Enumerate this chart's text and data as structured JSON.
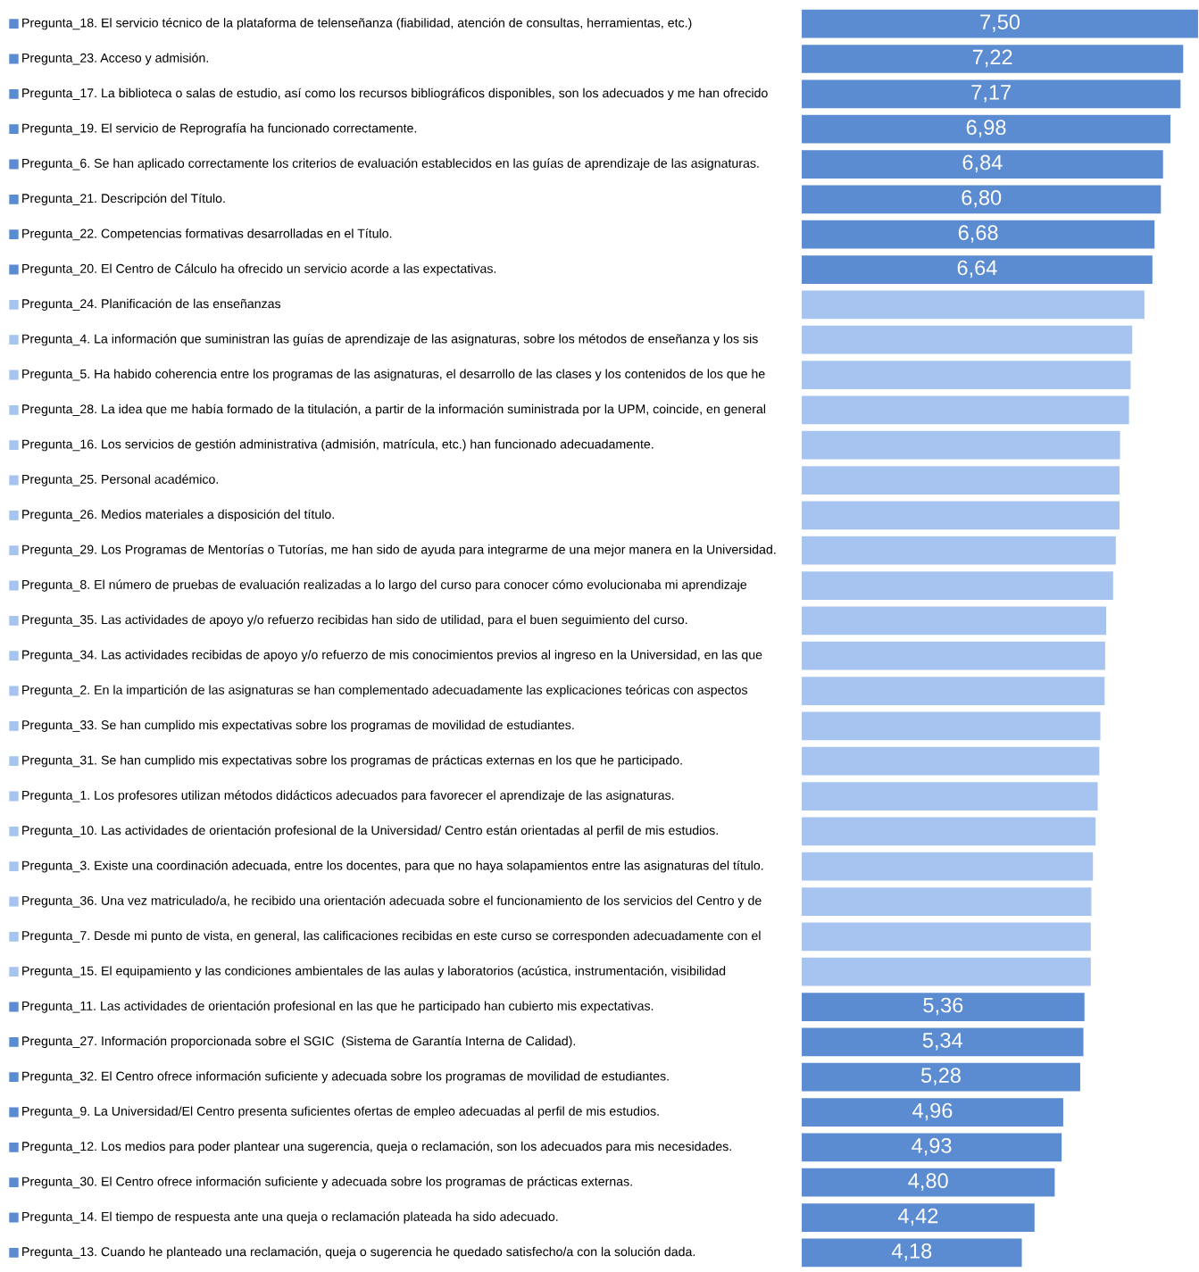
{
  "chart_data": {
    "type": "bar",
    "orientation": "horizontal",
    "categories": [
      "Pregunta_18. El servicio técnico de la plataforma de telenseñanza (fiabilidad, atención de consultas, herramientas, etc.)",
      "Pregunta_23. Acceso y admisión.",
      "Pregunta_17. La biblioteca o salas de estudio, así como los recursos bibliográficos disponibles, son los adecuados y me han ofrecido",
      "Pregunta_19. El servicio de Reprografía ha funcionado correctamente.",
      "Pregunta_6. Se han aplicado correctamente los criterios de evaluación establecidos en las guías de aprendizaje de las asignaturas.",
      "Pregunta_21. Descripción del Título.",
      "Pregunta_22. Competencias formativas desarrolladas en el Título.",
      "Pregunta_20. El Centro de Cálculo ha ofrecido un servicio acorde a las expectativas.",
      "Pregunta_24. Planificación de las enseñanzas",
      "Pregunta_4. La información que suministran las guías de aprendizaje de las asignaturas, sobre los métodos de enseñanza y los sis",
      "Pregunta_5. Ha habido coherencia entre los programas de las asignaturas, el desarrollo de las clases y los contenidos de los que he",
      "Pregunta_28. La idea que me había formado de la titulación, a partir de la información suministrada por la UPM, coincide, en general",
      "Pregunta_16. Los servicios de gestión administrativa (admisión, matrícula, etc.) han funcionado adecuadamente.",
      "Pregunta_25. Personal académico.",
      "Pregunta_26. Medios materiales a disposición del título.",
      "Pregunta_29. Los Programas de Mentorías o Tutorías, me han sido de ayuda para integrarme de una mejor manera en la Universidad.",
      "Pregunta_8. El número de pruebas de evaluación realizadas a lo largo del curso para conocer cómo evolucionaba mi aprendizaje",
      "Pregunta_35. Las actividades de apoyo y/o refuerzo recibidas han sido de utilidad, para el buen seguimiento del curso.",
      "Pregunta_34. Las actividades recibidas de apoyo y/o refuerzo de mis conocimientos previos al ingreso en la Universidad, en las que",
      "Pregunta_2. En la impartición de las asignaturas se han complementado adecuadamente las explicaciones teóricas con aspectos",
      "Pregunta_33. Se han cumplido mis expectativas sobre los programas de movilidad de estudiantes.",
      "Pregunta_31. Se han cumplido mis expectativas sobre los programas de prácticas externas en los que he participado.",
      "Pregunta_1. Los profesores utilizan métodos didácticos adecuados para favorecer el aprendizaje de las asignaturas.",
      "Pregunta_10. Las actividades de orientación profesional de la Universidad/ Centro están orientadas al perfil de mis estudios.",
      "Pregunta_3. Existe una coordinación adecuada, entre los docentes, para que no haya solapamientos entre las asignaturas del título.",
      "Pregunta_36. Una vez matriculado/a, he recibido una orientación adecuada sobre el funcionamiento de los servicios del Centro y de",
      "Pregunta_7. Desde mi punto de vista, en general, las calificaciones recibidas en este curso se corresponden adecuadamente con el",
      "Pregunta_15. El equipamiento y las condiciones ambientales de las aulas y laboratorios (acústica, instrumentación, visibilidad",
      "Pregunta_11. Las actividades de orientación profesional en las que he participado han cubierto mis expectativas.",
      "Pregunta_27. Información proporcionada sobre el SGIC  (Sistema de Garantía Interna de Calidad).",
      "Pregunta_32. El Centro ofrece información suficiente y adecuada sobre los programas de movilidad de estudiantes.",
      "Pregunta_9. La Universidad/El Centro presenta suficientes ofertas de empleo adecuadas al perfil de mis estudios.",
      "Pregunta_12. Los medios para poder plantear una sugerencia, queja o reclamación, son los adecuados para mis necesidades.",
      "Pregunta_30. El Centro ofrece información suficiente y adecuada sobre los programas de prácticas externas.",
      "Pregunta_14. El tiempo de respuesta ante una queja o reclamación plateada ha sido adecuado.",
      "Pregunta_13. Cuando he planteado una reclamación, queja o sugerencia he quedado satisfecho/a con la solución dada."
    ],
    "values": [
      7.5,
      7.22,
      7.17,
      6.98,
      6.84,
      6.8,
      6.68,
      6.64,
      6.49,
      6.26,
      6.23,
      6.2,
      6.03,
      6.02,
      6.02,
      5.95,
      5.9,
      5.77,
      5.75,
      5.74,
      5.66,
      5.64,
      5.61,
      5.57,
      5.52,
      5.49,
      5.48,
      5.48,
      5.36,
      5.34,
      5.28,
      4.96,
      4.93,
      4.8,
      4.42,
      4.18
    ],
    "value_labels": [
      "7,50",
      "7,22",
      "7,17",
      "6,98",
      "6,84",
      "6,80",
      "6,68",
      "6,64",
      null,
      null,
      null,
      null,
      null,
      null,
      null,
      null,
      null,
      null,
      null,
      null,
      null,
      null,
      null,
      null,
      null,
      null,
      null,
      null,
      "5,36",
      "5,34",
      "5,28",
      "4,96",
      "4,93",
      "4,80",
      "4,42",
      "4,18"
    ],
    "colors": [
      "#5b8bd0",
      "#5b8bd0",
      "#5b8bd0",
      "#5b8bd0",
      "#5b8bd0",
      "#5b8bd0",
      "#5b8bd0",
      "#5b8bd0",
      "#a7c4f0",
      "#a7c4f0",
      "#a7c4f0",
      "#a7c4f0",
      "#a7c4f0",
      "#a7c4f0",
      "#a7c4f0",
      "#a7c4f0",
      "#a7c4f0",
      "#a7c4f0",
      "#a7c4f0",
      "#a7c4f0",
      "#a7c4f0",
      "#a7c4f0",
      "#a7c4f0",
      "#a7c4f0",
      "#a7c4f0",
      "#a7c4f0",
      "#a7c4f0",
      "#a7c4f0",
      "#5b8bd0",
      "#5b8bd0",
      "#5b8bd0",
      "#5b8bd0",
      "#5b8bd0",
      "#5b8bd0",
      "#5b8bd0",
      "#5b8bd0"
    ],
    "legend": false
  }
}
